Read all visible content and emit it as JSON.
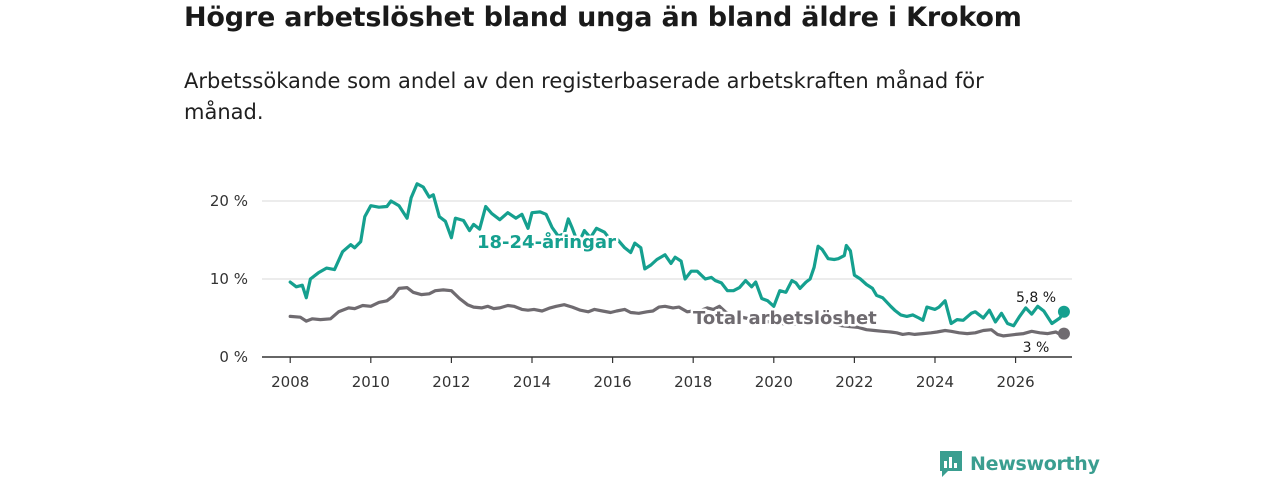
{
  "title": "Högre arbetslöshet bland unga än bland äldre i Krokom",
  "subtitle": "Arbetssökande som andel av den registerbaserade arbetskraften månad för månad.",
  "brand": {
    "name": "Newsworthy",
    "icon": "newsworthy-logo-icon"
  },
  "colors": {
    "youth": "#15a08f",
    "total": "#6f6b70",
    "grid": "#d9d9d9",
    "axis": "#333333"
  },
  "chart_data": {
    "type": "line",
    "title": "Högre arbetslöshet bland unga än bland äldre i Krokom",
    "xlabel": "",
    "ylabel": "",
    "xlim": [
      2007.3,
      2027.4
    ],
    "ylim": [
      0,
      20
    ],
    "y_ticks": [
      0,
      10,
      20
    ],
    "y_tick_labels": [
      "0 %",
      "10 %",
      "20 %"
    ],
    "x_ticks": [
      2008,
      2010,
      2012,
      2014,
      2016,
      2018,
      2020,
      2022,
      2024,
      2026
    ],
    "x_tick_labels": [
      "2008",
      "2010",
      "2012",
      "2014",
      "2016",
      "2018",
      "2020",
      "2022",
      "2024",
      "2026"
    ],
    "grid": true,
    "series": [
      {
        "name": "18-24-åringar",
        "label": "18-24-åringar",
        "color": "#15a08f",
        "end_label": "5,8 %",
        "end_value": 5.8,
        "points": [
          [
            2008.0,
            9.6
          ],
          [
            2008.15,
            9.0
          ],
          [
            2008.3,
            9.2
          ],
          [
            2008.4,
            7.6
          ],
          [
            2008.5,
            10.0
          ],
          [
            2008.7,
            10.8
          ],
          [
            2008.9,
            11.4
          ],
          [
            2009.1,
            11.2
          ],
          [
            2009.3,
            13.5
          ],
          [
            2009.5,
            14.4
          ],
          [
            2009.6,
            14.0
          ],
          [
            2009.75,
            14.8
          ],
          [
            2009.85,
            18.0
          ],
          [
            2010.0,
            19.4
          ],
          [
            2010.2,
            19.2
          ],
          [
            2010.4,
            19.3
          ],
          [
            2010.5,
            20.0
          ],
          [
            2010.7,
            19.4
          ],
          [
            2010.9,
            17.8
          ],
          [
            2011.0,
            20.4
          ],
          [
            2011.15,
            22.2
          ],
          [
            2011.3,
            21.8
          ],
          [
            2011.45,
            20.5
          ],
          [
            2011.55,
            20.8
          ],
          [
            2011.7,
            18.0
          ],
          [
            2011.85,
            17.4
          ],
          [
            2012.0,
            15.3
          ],
          [
            2012.1,
            17.8
          ],
          [
            2012.3,
            17.5
          ],
          [
            2012.45,
            16.2
          ],
          [
            2012.55,
            17.0
          ],
          [
            2012.7,
            16.4
          ],
          [
            2012.85,
            19.3
          ],
          [
            2013.0,
            18.4
          ],
          [
            2013.2,
            17.6
          ],
          [
            2013.4,
            18.5
          ],
          [
            2013.6,
            17.8
          ],
          [
            2013.75,
            18.3
          ],
          [
            2013.9,
            16.5
          ],
          [
            2014.0,
            18.5
          ],
          [
            2014.2,
            18.6
          ],
          [
            2014.35,
            18.3
          ],
          [
            2014.5,
            16.6
          ],
          [
            2014.65,
            15.5
          ],
          [
            2014.8,
            15.8
          ],
          [
            2014.9,
            17.7
          ],
          [
            2015.0,
            16.5
          ],
          [
            2015.15,
            14.5
          ],
          [
            2015.3,
            16.2
          ],
          [
            2015.45,
            15.3
          ],
          [
            2015.6,
            16.5
          ],
          [
            2015.8,
            16.0
          ],
          [
            2015.95,
            15.0
          ],
          [
            2016.1,
            15.2
          ],
          [
            2016.3,
            14.0
          ],
          [
            2016.45,
            13.4
          ],
          [
            2016.55,
            14.6
          ],
          [
            2016.7,
            14.0
          ],
          [
            2016.8,
            11.3
          ],
          [
            2016.95,
            11.8
          ],
          [
            2017.1,
            12.5
          ],
          [
            2017.3,
            13.1
          ],
          [
            2017.45,
            12.0
          ],
          [
            2017.55,
            12.8
          ],
          [
            2017.7,
            12.3
          ],
          [
            2017.8,
            10.0
          ],
          [
            2017.95,
            11.0
          ],
          [
            2018.1,
            11.0
          ],
          [
            2018.3,
            10.0
          ],
          [
            2018.45,
            10.2
          ],
          [
            2018.55,
            9.8
          ],
          [
            2018.7,
            9.5
          ],
          [
            2018.85,
            8.5
          ],
          [
            2019.0,
            8.5
          ],
          [
            2019.15,
            8.9
          ],
          [
            2019.3,
            9.8
          ],
          [
            2019.45,
            9.0
          ],
          [
            2019.55,
            9.6
          ],
          [
            2019.7,
            7.5
          ],
          [
            2019.85,
            7.2
          ],
          [
            2020.0,
            6.5
          ],
          [
            2020.15,
            8.5
          ],
          [
            2020.3,
            8.3
          ],
          [
            2020.45,
            9.8
          ],
          [
            2020.55,
            9.5
          ],
          [
            2020.65,
            8.8
          ],
          [
            2020.8,
            9.6
          ],
          [
            2020.9,
            10.0
          ],
          [
            2021.0,
            11.5
          ],
          [
            2021.1,
            14.2
          ],
          [
            2021.2,
            13.8
          ],
          [
            2021.35,
            12.6
          ],
          [
            2021.5,
            12.5
          ],
          [
            2021.6,
            12.6
          ],
          [
            2021.75,
            13.0
          ],
          [
            2021.8,
            14.3
          ],
          [
            2021.9,
            13.6
          ],
          [
            2022.0,
            10.5
          ],
          [
            2022.15,
            10.0
          ],
          [
            2022.3,
            9.3
          ],
          [
            2022.45,
            8.8
          ],
          [
            2022.55,
            7.9
          ],
          [
            2022.7,
            7.6
          ],
          [
            2022.9,
            6.5
          ],
          [
            2023.0,
            6.0
          ],
          [
            2023.15,
            5.4
          ],
          [
            2023.3,
            5.2
          ],
          [
            2023.45,
            5.4
          ],
          [
            2023.6,
            5.0
          ],
          [
            2023.7,
            4.7
          ],
          [
            2023.8,
            6.4
          ],
          [
            2024.0,
            6.1
          ],
          [
            2024.1,
            6.4
          ],
          [
            2024.25,
            7.2
          ],
          [
            2024.4,
            4.3
          ],
          [
            2024.55,
            4.8
          ],
          [
            2024.7,
            4.7
          ],
          [
            2024.9,
            5.6
          ],
          [
            2025.0,
            5.8
          ],
          [
            2025.2,
            5.0
          ],
          [
            2025.35,
            6.0
          ],
          [
            2025.5,
            4.5
          ],
          [
            2025.65,
            5.6
          ],
          [
            2025.8,
            4.3
          ],
          [
            2025.95,
            4.0
          ],
          [
            2026.1,
            5.2
          ],
          [
            2026.25,
            6.3
          ],
          [
            2026.4,
            5.5
          ],
          [
            2026.55,
            6.5
          ],
          [
            2026.7,
            5.9
          ],
          [
            2026.9,
            4.3
          ],
          [
            2027.1,
            5.0
          ],
          [
            2027.2,
            5.8
          ]
        ]
      },
      {
        "name": "Total arbetslöshet",
        "label": "Total arbetslöshet",
        "color": "#6f6b70",
        "end_label": "3 %",
        "end_value": 3.0,
        "points": [
          [
            2008.0,
            5.2
          ],
          [
            2008.25,
            5.1
          ],
          [
            2008.4,
            4.6
          ],
          [
            2008.55,
            4.9
          ],
          [
            2008.75,
            4.8
          ],
          [
            2009.0,
            4.9
          ],
          [
            2009.2,
            5.8
          ],
          [
            2009.45,
            6.3
          ],
          [
            2009.6,
            6.2
          ],
          [
            2009.8,
            6.6
          ],
          [
            2010.0,
            6.5
          ],
          [
            2010.2,
            7.0
          ],
          [
            2010.4,
            7.2
          ],
          [
            2010.55,
            7.8
          ],
          [
            2010.7,
            8.8
          ],
          [
            2010.9,
            8.9
          ],
          [
            2011.05,
            8.3
          ],
          [
            2011.25,
            8.0
          ],
          [
            2011.45,
            8.1
          ],
          [
            2011.6,
            8.5
          ],
          [
            2011.8,
            8.6
          ],
          [
            2012.0,
            8.5
          ],
          [
            2012.2,
            7.5
          ],
          [
            2012.4,
            6.7
          ],
          [
            2012.55,
            6.4
          ],
          [
            2012.75,
            6.3
          ],
          [
            2012.9,
            6.5
          ],
          [
            2013.05,
            6.2
          ],
          [
            2013.2,
            6.3
          ],
          [
            2013.4,
            6.6
          ],
          [
            2013.55,
            6.5
          ],
          [
            2013.75,
            6.1
          ],
          [
            2013.9,
            6.0
          ],
          [
            2014.05,
            6.1
          ],
          [
            2014.25,
            5.9
          ],
          [
            2014.45,
            6.3
          ],
          [
            2014.6,
            6.5
          ],
          [
            2014.8,
            6.7
          ],
          [
            2015.0,
            6.4
          ],
          [
            2015.2,
            6.0
          ],
          [
            2015.4,
            5.8
          ],
          [
            2015.55,
            6.1
          ],
          [
            2015.75,
            5.9
          ],
          [
            2015.95,
            5.7
          ],
          [
            2016.1,
            5.9
          ],
          [
            2016.3,
            6.1
          ],
          [
            2016.45,
            5.7
          ],
          [
            2016.65,
            5.6
          ],
          [
            2016.85,
            5.8
          ],
          [
            2017.0,
            5.9
          ],
          [
            2017.15,
            6.4
          ],
          [
            2017.3,
            6.5
          ],
          [
            2017.5,
            6.3
          ],
          [
            2017.65,
            6.4
          ],
          [
            2017.85,
            5.8
          ],
          [
            2018.0,
            5.9
          ],
          [
            2018.2,
            6.0
          ],
          [
            2018.35,
            6.3
          ],
          [
            2018.5,
            6.1
          ],
          [
            2018.65,
            6.5
          ],
          [
            2018.8,
            5.8
          ],
          [
            2018.95,
            5.3
          ],
          [
            2019.1,
            5.2
          ],
          [
            2019.3,
            5.0
          ],
          [
            2019.5,
            4.8
          ],
          [
            2019.7,
            4.6
          ],
          [
            2019.9,
            4.5
          ],
          [
            2020.1,
            4.4
          ],
          [
            2020.3,
            4.2
          ],
          [
            2020.5,
            4.2
          ],
          [
            2020.7,
            4.5
          ],
          [
            2020.9,
            4.7
          ],
          [
            2021.1,
            4.6
          ],
          [
            2021.3,
            4.4
          ],
          [
            2021.5,
            4.2
          ],
          [
            2021.7,
            4.0
          ],
          [
            2021.9,
            3.9
          ],
          [
            2022.1,
            3.8
          ],
          [
            2022.3,
            3.5
          ],
          [
            2022.5,
            3.4
          ],
          [
            2022.7,
            3.3
          ],
          [
            2022.9,
            3.2
          ],
          [
            2023.05,
            3.1
          ],
          [
            2023.2,
            2.9
          ],
          [
            2023.35,
            3.0
          ],
          [
            2023.5,
            2.9
          ],
          [
            2023.7,
            3.0
          ],
          [
            2023.9,
            3.1
          ],
          [
            2024.05,
            3.2
          ],
          [
            2024.25,
            3.4
          ],
          [
            2024.4,
            3.3
          ],
          [
            2024.6,
            3.1
          ],
          [
            2024.8,
            3.0
          ],
          [
            2025.0,
            3.1
          ],
          [
            2025.2,
            3.4
          ],
          [
            2025.4,
            3.5
          ],
          [
            2025.55,
            2.9
          ],
          [
            2025.7,
            2.7
          ],
          [
            2025.85,
            2.8
          ],
          [
            2026.0,
            2.9
          ],
          [
            2026.2,
            3.0
          ],
          [
            2026.4,
            3.3
          ],
          [
            2026.6,
            3.1
          ],
          [
            2026.8,
            3.0
          ],
          [
            2027.0,
            3.2
          ],
          [
            2027.1,
            2.9
          ],
          [
            2027.2,
            3.0
          ]
        ]
      }
    ]
  }
}
